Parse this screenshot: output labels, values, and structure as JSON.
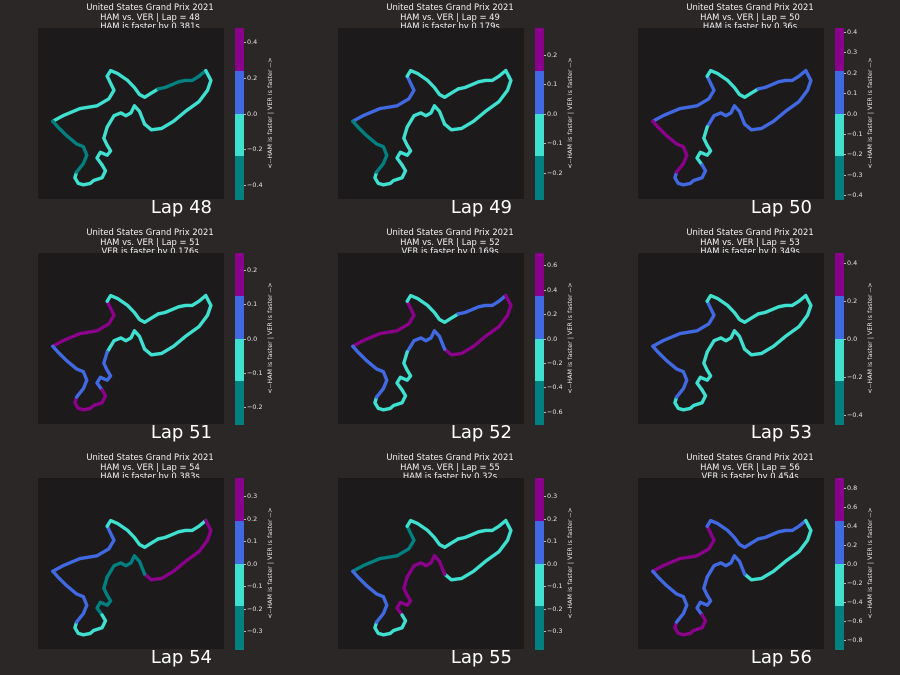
{
  "figure": {
    "background": "#2b2727",
    "plot_background": "#1c1a1a",
    "colorbar_label": "<--HAM is faster | VER is faster -->",
    "colormap": [
      "#008080",
      "#40e0d0",
      "#4169e1",
      "#8b008b"
    ],
    "colormap_names": [
      "teal",
      "turquoise",
      "royalblue",
      "darkmagenta"
    ],
    "track_coordinate_note": "track outline is normalized 0-1 in the plot's data space"
  },
  "track": {
    "x": [
      0.04,
      0.1,
      0.2,
      0.3,
      0.37,
      0.4,
      0.38,
      0.36,
      0.38,
      0.42,
      0.48,
      0.52,
      0.55,
      0.58,
      0.62,
      0.66,
      0.7,
      0.74,
      0.78,
      0.82,
      0.86,
      0.9,
      0.94,
      0.97,
      0.95,
      0.9,
      0.82,
      0.75,
      0.68,
      0.62,
      0.58,
      0.55,
      0.52,
      0.5,
      0.47,
      0.44,
      0.4,
      0.36,
      0.34,
      0.36,
      0.38,
      0.36,
      0.32,
      0.3,
      0.33,
      0.35,
      0.33,
      0.28,
      0.26,
      0.22,
      0.19,
      0.17,
      0.18,
      0.22,
      0.24,
      0.22,
      0.18,
      0.12,
      0.07,
      0.04
    ],
    "y": [
      0.48,
      0.52,
      0.57,
      0.59,
      0.64,
      0.7,
      0.75,
      0.8,
      0.84,
      0.82,
      0.77,
      0.72,
      0.67,
      0.65,
      0.68,
      0.71,
      0.72,
      0.74,
      0.76,
      0.77,
      0.77,
      0.8,
      0.84,
      0.77,
      0.7,
      0.62,
      0.55,
      0.48,
      0.43,
      0.42,
      0.46,
      0.55,
      0.59,
      0.54,
      0.52,
      0.54,
      0.52,
      0.44,
      0.36,
      0.31,
      0.27,
      0.24,
      0.26,
      0.22,
      0.17,
      0.13,
      0.08,
      0.06,
      0.04,
      0.03,
      0.04,
      0.08,
      0.12,
      0.18,
      0.24,
      0.3,
      0.32,
      0.38,
      0.44,
      0.48
    ],
    "segments_by_lap": "track is divided into 8 minisectors; value = time delta class index per minisector"
  },
  "chart_data": [
    {
      "type": "heatmap",
      "title": "United States Grand Prix 2021",
      "subtitle": "HAM vs. VER | Lap = 48",
      "result": "HAM is faster by 0.381s",
      "lap_label": "Lap 48",
      "ticks": [
        "0.4",
        "0.2",
        "0.0",
        "−0.2",
        "−0.4"
      ],
      "tick_values": [
        0.4,
        0.2,
        0.0,
        -0.2,
        -0.4
      ],
      "clim": [
        -0.48,
        0.48
      ],
      "minisector_colors": [
        1,
        1,
        0,
        1,
        1,
        1,
        1,
        0
      ]
    },
    {
      "type": "heatmap",
      "title": "United States Grand Prix 2021",
      "subtitle": "HAM vs. VER | Lap = 49",
      "result": "HAM is faster by 0.179s",
      "lap_label": "Lap 49",
      "ticks": [
        "0.2",
        "0.1",
        "0.0",
        "−0.1",
        "−0.2"
      ],
      "tick_values": [
        0.2,
        0.1,
        0.0,
        -0.1,
        -0.2
      ],
      "clim": [
        -0.29,
        0.29
      ],
      "minisector_colors": [
        2,
        1,
        1,
        1,
        1,
        1,
        1,
        0
      ]
    },
    {
      "type": "heatmap",
      "title": "United States Grand Prix 2021",
      "subtitle": "HAM vs. VER | Lap = 50",
      "result": "HAM is faster by 0.36s",
      "lap_label": "Lap 50",
      "ticks": [
        "0.4",
        "0.3",
        "0.2",
        "0.1",
        "0.0",
        "−0.1",
        "−0.2",
        "−0.3",
        "−0.4"
      ],
      "tick_values": [
        0.4,
        0.3,
        0.2,
        0.1,
        0.0,
        -0.1,
        -0.2,
        -0.3,
        -0.4
      ],
      "clim": [
        -0.42,
        0.42
      ],
      "minisector_colors": [
        2,
        1,
        2,
        2,
        2,
        1,
        2,
        3
      ]
    },
    {
      "type": "heatmap",
      "title": "United States Grand Prix 2021",
      "subtitle": "HAM vs. VER | Lap = 51",
      "result": "VER is faster by 0.176s",
      "lap_label": "Lap 51",
      "ticks": [
        "0.2",
        "0.1",
        "0.0",
        "−0.1",
        "−0.2"
      ],
      "tick_values": [
        0.2,
        0.1,
        0.0,
        -0.1,
        -0.2
      ],
      "clim": [
        -0.25,
        0.25
      ],
      "minisector_colors": [
        3,
        1,
        1,
        1,
        1,
        2,
        3,
        2
      ]
    },
    {
      "type": "heatmap",
      "title": "United States Grand Prix 2021",
      "subtitle": "HAM vs. VER | Lap = 52",
      "result": "VER is faster by 0.169s",
      "lap_label": "Lap 52",
      "ticks": [
        "0.6",
        "0.4",
        "0.2",
        "0.0",
        "−0.2",
        "−0.4",
        "−0.6"
      ],
      "tick_values": [
        0.6,
        0.4,
        0.2,
        0.0,
        -0.2,
        -0.4,
        -0.6
      ],
      "clim": [
        -0.7,
        0.7
      ],
      "minisector_colors": [
        3,
        1,
        2,
        3,
        2,
        1,
        1,
        2
      ]
    },
    {
      "type": "heatmap",
      "title": "United States Grand Prix 2021",
      "subtitle": "HAM vs. VER | Lap = 53",
      "result": "HAM is faster by 0.349s",
      "lap_label": "Lap 53",
      "ticks": [
        "0.4",
        "0.2",
        "0.0",
        "−0.2",
        "−0.4"
      ],
      "tick_values": [
        0.4,
        0.2,
        0.0,
        -0.2,
        -0.4
      ],
      "clim": [
        -0.45,
        0.45
      ],
      "minisector_colors": [
        2,
        1,
        1,
        1,
        1,
        1,
        1,
        2
      ]
    },
    {
      "type": "heatmap",
      "title": "United States Grand Prix 2021",
      "subtitle": "HAM vs. VER | Lap = 54",
      "result": "HAM is faster by 0.383s",
      "lap_label": "Lap 54",
      "ticks": [
        "0.3",
        "0.2",
        "0.1",
        "0.0",
        "−0.1",
        "−0.2",
        "−0.3"
      ],
      "tick_values": [
        0.3,
        0.2,
        0.1,
        0.0,
        -0.1,
        -0.2,
        -0.3
      ],
      "clim": [
        -0.38,
        0.38
      ],
      "minisector_colors": [
        2,
        1,
        1,
        3,
        0,
        0,
        1,
        2
      ]
    },
    {
      "type": "heatmap",
      "title": "United States Grand Prix 2021",
      "subtitle": "HAM vs. VER | Lap = 55",
      "result": "HAM is faster by 0.32s",
      "lap_label": "Lap 55",
      "ticks": [
        "0.3",
        "0.2",
        "0.1",
        "0.0",
        "−0.1",
        "−0.2",
        "−0.3"
      ],
      "tick_values": [
        0.3,
        0.2,
        0.1,
        0.0,
        -0.1,
        -0.2,
        -0.3
      ],
      "clim": [
        -0.38,
        0.38
      ],
      "minisector_colors": [
        0,
        1,
        1,
        1,
        3,
        3,
        1,
        2
      ]
    },
    {
      "type": "heatmap",
      "title": "United States Grand Prix 2021",
      "subtitle": "HAM vs. VER | Lap = 56",
      "result": "VER is faster by 0.454s",
      "lap_label": "Lap 56",
      "ticks": [
        "0.8",
        "0.6",
        "0.4",
        "0.2",
        "0.0",
        "−0.2",
        "−0.4",
        "−0.6",
        "−0.8"
      ],
      "tick_values": [
        0.8,
        0.6,
        0.4,
        0.2,
        0.0,
        -0.2,
        -0.4,
        -0.6,
        -0.8
      ],
      "clim": [
        -0.9,
        0.9
      ],
      "minisector_colors": [
        3,
        2,
        2,
        1,
        2,
        2,
        3,
        2
      ]
    }
  ]
}
